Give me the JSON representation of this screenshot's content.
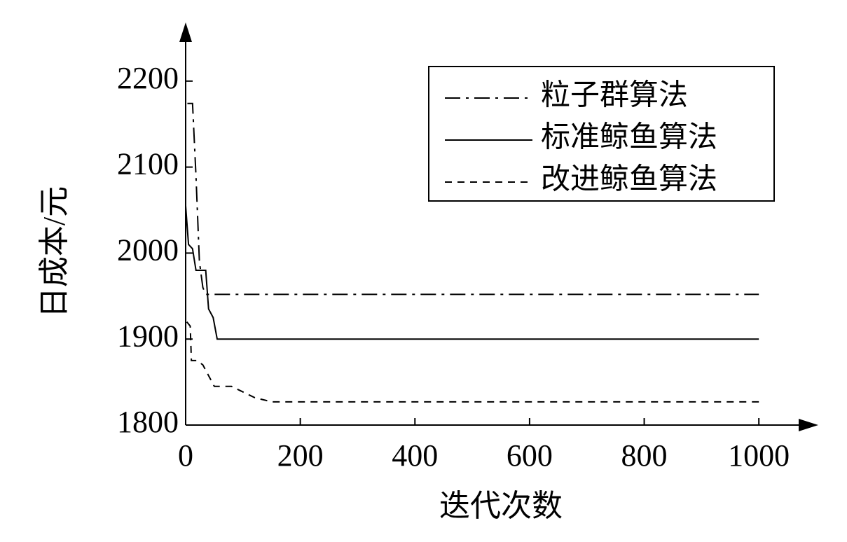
{
  "chart_data": {
    "type": "line",
    "x_label": "迭代次数",
    "y_label": "日成本/元",
    "xlim": [
      0,
      1100
    ],
    "ylim": [
      1800,
      2265
    ],
    "xticks": [
      0,
      200,
      400,
      600,
      800,
      1000
    ],
    "yticks": [
      1800,
      1900,
      2000,
      2100,
      2200
    ],
    "legend": "upper right",
    "series": [
      {
        "name": "粒子群算法",
        "color": "#000000",
        "linestyle": "dashdot",
        "x": [
          3,
          12,
          18,
          24,
          30,
          35,
          1000
        ],
        "values": [
          2174,
          2174,
          2090,
          1990,
          1960,
          1952,
          1952
        ]
      },
      {
        "name": "标准鲸鱼算法",
        "color": "#000000",
        "linestyle": "solid",
        "x": [
          0,
          5,
          12,
          18,
          35,
          40,
          48,
          55,
          1000
        ],
        "values": [
          2055,
          2010,
          2005,
          1980,
          1980,
          1935,
          1925,
          1900,
          1900
        ]
      },
      {
        "name": "改进鲸鱼算法",
        "color": "#000000",
        "linestyle": "dashed",
        "x": [
          2,
          8,
          10,
          20,
          30,
          50,
          80,
          120,
          150,
          1000
        ],
        "values": [
          1920,
          1915,
          1875,
          1875,
          1870,
          1845,
          1845,
          1832,
          1827,
          1827
        ]
      }
    ]
  }
}
